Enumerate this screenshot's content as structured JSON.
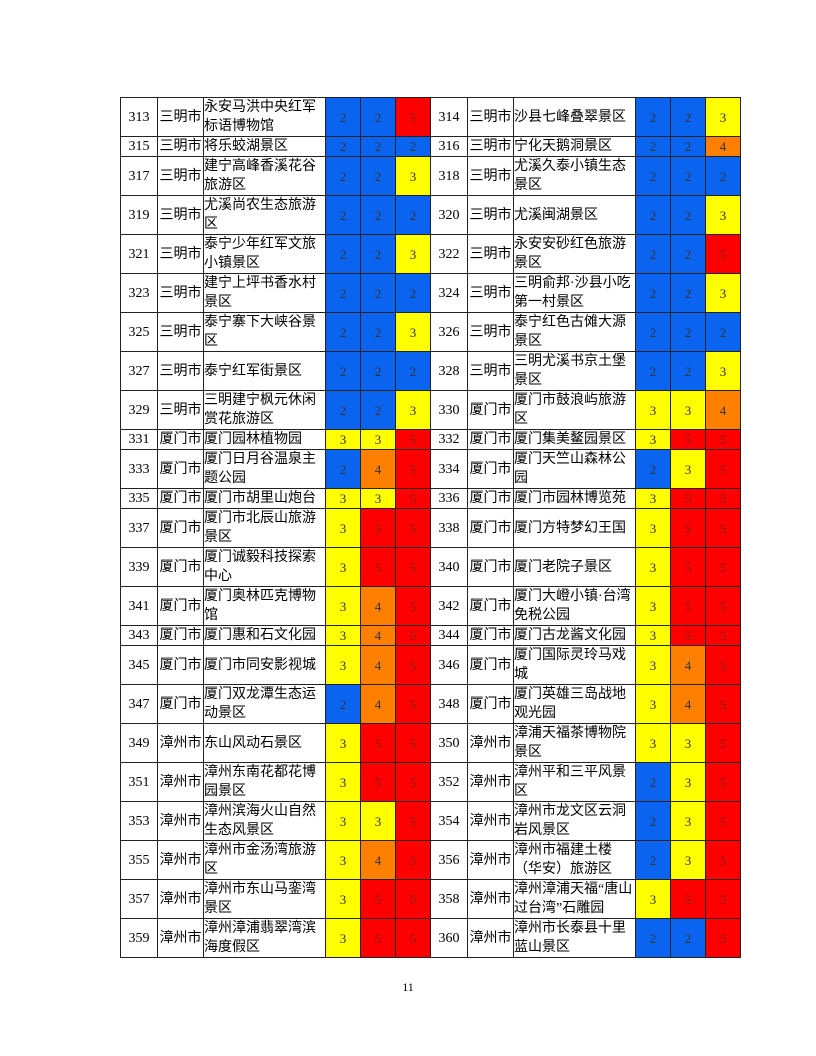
{
  "colors": {
    "2": "#0a64f0",
    "3": "#ffff00",
    "4": "#ff8000",
    "5": "#ff0000"
  },
  "rows": [
    [
      {
        "no": "313",
        "city": "三明市",
        "name": "永安马洪中央红军标语博物馆",
        "scores": [
          2,
          2,
          5
        ]
      },
      {
        "no": "314",
        "city": "三明市",
        "name": "沙县七峰叠翠景区",
        "scores": [
          2,
          2,
          3
        ]
      }
    ],
    [
      {
        "no": "315",
        "city": "三明市",
        "name": "将乐蛟湖景区",
        "scores": [
          2,
          2,
          2
        ]
      },
      {
        "no": "316",
        "city": "三明市",
        "name": "宁化天鹅洞景区",
        "scores": [
          2,
          2,
          4
        ]
      }
    ],
    [
      {
        "no": "317",
        "city": "三明市",
        "name": "建宁高峰香溪花谷旅游区",
        "scores": [
          2,
          2,
          3
        ]
      },
      {
        "no": "318",
        "city": "三明市",
        "name": "尤溪久泰小镇生态景区",
        "scores": [
          2,
          2,
          2
        ]
      }
    ],
    [
      {
        "no": "319",
        "city": "三明市",
        "name": "尤溪尚农生态旅游区",
        "scores": [
          2,
          2,
          2
        ]
      },
      {
        "no": "320",
        "city": "三明市",
        "name": "尤溪闽湖景区",
        "scores": [
          2,
          2,
          3
        ]
      }
    ],
    [
      {
        "no": "321",
        "city": "三明市",
        "name": "泰宁少年红军文旅小镇景区",
        "scores": [
          2,
          2,
          3
        ]
      },
      {
        "no": "322",
        "city": "三明市",
        "name": "永安安砂红色旅游景区",
        "scores": [
          2,
          2,
          5
        ]
      }
    ],
    [
      {
        "no": "323",
        "city": "三明市",
        "name": "建宁上坪书香水村景区",
        "scores": [
          2,
          2,
          2
        ]
      },
      {
        "no": "324",
        "city": "三明市",
        "name": "三明俞邦·沙县小吃第一村景区",
        "scores": [
          2,
          2,
          3
        ]
      }
    ],
    [
      {
        "no": "325",
        "city": "三明市",
        "name": "泰宁寨下大峡谷景区",
        "scores": [
          2,
          2,
          3
        ]
      },
      {
        "no": "326",
        "city": "三明市",
        "name": "泰宁红色古傩大源景区",
        "scores": [
          2,
          2,
          2
        ]
      }
    ],
    [
      {
        "no": "327",
        "city": "三明市",
        "name": "泰宁红军街景区",
        "scores": [
          2,
          2,
          2
        ]
      },
      {
        "no": "328",
        "city": "三明市",
        "name": "三明尤溪书京土堡景区",
        "scores": [
          2,
          2,
          3
        ]
      }
    ],
    [
      {
        "no": "329",
        "city": "三明市",
        "name": "三明建宁枫元休闲赏花旅游区",
        "scores": [
          2,
          2,
          3
        ]
      },
      {
        "no": "330",
        "city": "厦门市",
        "name": "厦门市鼓浪屿旅游区",
        "scores": [
          3,
          3,
          4
        ]
      }
    ],
    [
      {
        "no": "331",
        "city": "厦门市",
        "name": "厦门园林植物园",
        "scores": [
          3,
          3,
          5
        ]
      },
      {
        "no": "332",
        "city": "厦门市",
        "name": "厦门集美鳌园景区",
        "scores": [
          3,
          5,
          5
        ]
      }
    ],
    [
      {
        "no": "333",
        "city": "厦门市",
        "name": "厦门日月谷温泉主题公园",
        "scores": [
          2,
          4,
          5
        ]
      },
      {
        "no": "334",
        "city": "厦门市",
        "name": "厦门天竺山森林公园",
        "scores": [
          2,
          3,
          5
        ]
      }
    ],
    [
      {
        "no": "335",
        "city": "厦门市",
        "name": "厦门市胡里山炮台",
        "scores": [
          3,
          3,
          5
        ]
      },
      {
        "no": "336",
        "city": "厦门市",
        "name": "厦门市园林博览苑",
        "scores": [
          3,
          5,
          5
        ]
      }
    ],
    [
      {
        "no": "337",
        "city": "厦门市",
        "name": "厦门市北辰山旅游景区",
        "scores": [
          3,
          5,
          5
        ]
      },
      {
        "no": "338",
        "city": "厦门市",
        "name": "厦门方特梦幻王国",
        "scores": [
          3,
          5,
          5
        ]
      }
    ],
    [
      {
        "no": "339",
        "city": "厦门市",
        "name": "厦门诚毅科技探索中心",
        "scores": [
          3,
          5,
          5
        ]
      },
      {
        "no": "340",
        "city": "厦门市",
        "name": "厦门老院子景区",
        "scores": [
          3,
          5,
          5
        ]
      }
    ],
    [
      {
        "no": "341",
        "city": "厦门市",
        "name": "厦门奥林匹克博物馆",
        "scores": [
          3,
          4,
          5
        ]
      },
      {
        "no": "342",
        "city": "厦门市",
        "name": "厦门大嶝小镇·台湾免税公园",
        "scores": [
          3,
          5,
          5
        ]
      }
    ],
    [
      {
        "no": "343",
        "city": "厦门市",
        "name": "厦门惠和石文化园",
        "scores": [
          3,
          4,
          5
        ]
      },
      {
        "no": "344",
        "city": "厦门市",
        "name": "厦门古龙酱文化园",
        "scores": [
          3,
          5,
          5
        ]
      }
    ],
    [
      {
        "no": "345",
        "city": "厦门市",
        "name": "厦门市同安影视城",
        "scores": [
          3,
          4,
          5
        ]
      },
      {
        "no": "346",
        "city": "厦门市",
        "name": "厦门国际灵玲马戏城",
        "scores": [
          3,
          4,
          5
        ]
      }
    ],
    [
      {
        "no": "347",
        "city": "厦门市",
        "name": "厦门双龙潭生态运动景区",
        "scores": [
          2,
          4,
          5
        ]
      },
      {
        "no": "348",
        "city": "厦门市",
        "name": "厦门英雄三岛战地观光园",
        "scores": [
          3,
          4,
          5
        ]
      }
    ],
    [
      {
        "no": "349",
        "city": "漳州市",
        "name": "东山风动石景区",
        "scores": [
          3,
          5,
          5
        ]
      },
      {
        "no": "350",
        "city": "漳州市",
        "name": "漳浦天福茶博物院景区",
        "scores": [
          3,
          3,
          5
        ]
      }
    ],
    [
      {
        "no": "351",
        "city": "漳州市",
        "name": "漳州东南花都花博园景区",
        "scores": [
          3,
          5,
          5
        ]
      },
      {
        "no": "352",
        "city": "漳州市",
        "name": "漳州平和三平风景区",
        "scores": [
          2,
          3,
          5
        ]
      }
    ],
    [
      {
        "no": "353",
        "city": "漳州市",
        "name": "漳州滨海火山自然生态风景区",
        "scores": [
          3,
          3,
          5
        ]
      },
      {
        "no": "354",
        "city": "漳州市",
        "name": "漳州市龙文区云洞岩风景区",
        "scores": [
          2,
          3,
          5
        ]
      }
    ],
    [
      {
        "no": "355",
        "city": "漳州市",
        "name": "漳州市金汤湾旅游区",
        "scores": [
          3,
          4,
          5
        ]
      },
      {
        "no": "356",
        "city": "漳州市",
        "name": "漳州市福建土楼（华安）旅游区",
        "scores": [
          2,
          3,
          5
        ]
      }
    ],
    [
      {
        "no": "357",
        "city": "漳州市",
        "name": "漳州市东山马銮湾景区",
        "scores": [
          3,
          5,
          5
        ]
      },
      {
        "no": "358",
        "city": "漳州市",
        "name": "漳州漳浦天福“唐山过台湾”石雕园",
        "scores": [
          3,
          5,
          5
        ]
      }
    ],
    [
      {
        "no": "359",
        "city": "漳州市",
        "name": "漳州漳浦翡翠湾滨海度假区",
        "scores": [
          3,
          5,
          5
        ]
      },
      {
        "no": "360",
        "city": "漳州市",
        "name": "漳州市长泰县十里蓝山景区",
        "scores": [
          2,
          2,
          5
        ]
      }
    ]
  ],
  "page_number": "11"
}
